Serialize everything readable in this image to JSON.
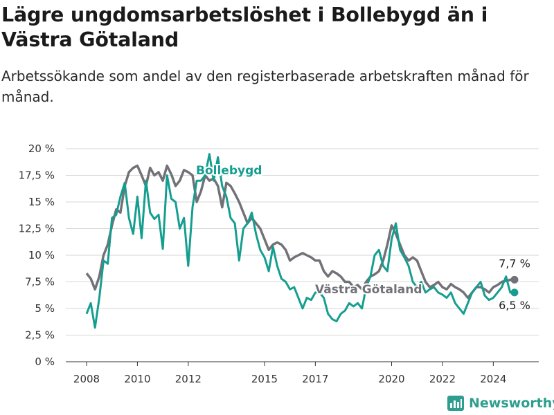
{
  "title": "Lägre ungdomsarbetslöshet i Bollebygd än i Västra Götaland",
  "subtitle": "Arbetssökande som andel av den registerbaserade arbetskraften månad för månad.",
  "brand": "Newsworthy",
  "colors": {
    "bollebygd": "#159e90",
    "vastra_gotaland": "#717178",
    "grid": "#d6d6d6",
    "brand": "#2e9e8f"
  },
  "chart_data": {
    "type": "line",
    "x_ticks": [
      "2008",
      "2010",
      "2012",
      "2015",
      "2017",
      "2020",
      "2022",
      "2024"
    ],
    "y_ticks": [
      "0 %",
      "2,5 %",
      "5 %",
      "7,5 %",
      "10 %",
      "12,5 %",
      "15 %",
      "17,5 %",
      "20 %"
    ],
    "ylim": [
      0,
      20
    ],
    "xlim": [
      "2008-01",
      "2024-12"
    ],
    "grid": "horizontal",
    "series": [
      {
        "name": "Bollebygd",
        "end_label": "6,5 %",
        "x": [
          "2008-01",
          "2008-03",
          "2008-05",
          "2008-07",
          "2008-09",
          "2008-11",
          "2009-01",
          "2009-03",
          "2009-05",
          "2009-07",
          "2009-09",
          "2009-11",
          "2010-01",
          "2010-03",
          "2010-05",
          "2010-07",
          "2010-09",
          "2010-11",
          "2011-01",
          "2011-03",
          "2011-05",
          "2011-07",
          "2011-09",
          "2011-11",
          "2012-01",
          "2012-03",
          "2012-05",
          "2012-07",
          "2012-09",
          "2012-11",
          "2013-01",
          "2013-03",
          "2013-05",
          "2013-07",
          "2013-09",
          "2013-11",
          "2014-01",
          "2014-03",
          "2014-05",
          "2014-07",
          "2014-09",
          "2014-11",
          "2015-01",
          "2015-03",
          "2015-05",
          "2015-07",
          "2015-09",
          "2015-11",
          "2016-01",
          "2016-03",
          "2016-05",
          "2016-07",
          "2016-09",
          "2016-11",
          "2017-01",
          "2017-03",
          "2017-05",
          "2017-07",
          "2017-09",
          "2017-11",
          "2018-01",
          "2018-03",
          "2018-05",
          "2018-07",
          "2018-09",
          "2018-11",
          "2019-01",
          "2019-03",
          "2019-05",
          "2019-07",
          "2019-09",
          "2019-11",
          "2020-01",
          "2020-03",
          "2020-05",
          "2020-07",
          "2020-09",
          "2020-11",
          "2021-01",
          "2021-03",
          "2021-05",
          "2021-07",
          "2021-09",
          "2021-11",
          "2022-01",
          "2022-03",
          "2022-05",
          "2022-07",
          "2022-09",
          "2022-11",
          "2023-01",
          "2023-03",
          "2023-05",
          "2023-07",
          "2023-09",
          "2023-11",
          "2024-01",
          "2024-03",
          "2024-05",
          "2024-07",
          "2024-09",
          "2024-11"
        ],
        "values": [
          4.5,
          5.5,
          3.2,
          6.0,
          9.5,
          9.2,
          13.5,
          13.8,
          15.5,
          16.8,
          13.5,
          12.0,
          15.5,
          11.6,
          17.0,
          14.0,
          13.4,
          13.8,
          10.6,
          17.5,
          15.3,
          15.0,
          12.5,
          13.5,
          9.0,
          14.5,
          17.0,
          17.0,
          17.5,
          19.5,
          17.0,
          19.2,
          16.5,
          15.5,
          13.5,
          13.0,
          9.5,
          12.5,
          13.0,
          14.0,
          12.0,
          10.5,
          9.8,
          8.5,
          10.8,
          9.0,
          7.8,
          7.5,
          6.8,
          7.0,
          6.0,
          5.0,
          6.0,
          5.8,
          6.5,
          6.5,
          6.0,
          4.5,
          4.0,
          3.8,
          4.5,
          4.8,
          5.5,
          5.2,
          5.5,
          5.0,
          7.0,
          8.0,
          10.0,
          10.5,
          9.0,
          8.5,
          11.5,
          13.0,
          10.5,
          9.8,
          9.0,
          7.5,
          7.0,
          7.5,
          6.5,
          6.8,
          7.0,
          6.5,
          6.3,
          6.0,
          6.5,
          5.5,
          5.0,
          4.5,
          5.5,
          6.5,
          7.0,
          7.5,
          6.2,
          5.8,
          6.0,
          6.5,
          7.0,
          8.0,
          6.5,
          6.5
        ]
      },
      {
        "name": "Västra Götaland",
        "end_label": "7,7 %",
        "x": [
          "2008-01",
          "2008-03",
          "2008-05",
          "2008-07",
          "2008-09",
          "2008-11",
          "2009-01",
          "2009-03",
          "2009-05",
          "2009-07",
          "2009-09",
          "2009-11",
          "2010-01",
          "2010-03",
          "2010-05",
          "2010-07",
          "2010-09",
          "2010-11",
          "2011-01",
          "2011-03",
          "2011-05",
          "2011-07",
          "2011-09",
          "2011-11",
          "2012-01",
          "2012-03",
          "2012-05",
          "2012-07",
          "2012-09",
          "2012-11",
          "2013-01",
          "2013-03",
          "2013-05",
          "2013-07",
          "2013-09",
          "2013-11",
          "2014-01",
          "2014-03",
          "2014-05",
          "2014-07",
          "2014-09",
          "2014-11",
          "2015-01",
          "2015-03",
          "2015-05",
          "2015-07",
          "2015-09",
          "2015-11",
          "2016-01",
          "2016-03",
          "2016-05",
          "2016-07",
          "2016-09",
          "2016-11",
          "2017-01",
          "2017-03",
          "2017-05",
          "2017-07",
          "2017-09",
          "2017-11",
          "2018-01",
          "2018-03",
          "2018-05",
          "2018-07",
          "2018-09",
          "2018-11",
          "2019-01",
          "2019-03",
          "2019-05",
          "2019-07",
          "2019-09",
          "2019-11",
          "2020-01",
          "2020-03",
          "2020-05",
          "2020-07",
          "2020-09",
          "2020-11",
          "2021-01",
          "2021-03",
          "2021-05",
          "2021-07",
          "2021-09",
          "2021-11",
          "2022-01",
          "2022-03",
          "2022-05",
          "2022-07",
          "2022-09",
          "2022-11",
          "2023-01",
          "2023-03",
          "2023-05",
          "2023-07",
          "2023-09",
          "2023-11",
          "2024-01",
          "2024-03",
          "2024-05",
          "2024-07",
          "2024-09",
          "2024-11"
        ],
        "values": [
          8.3,
          7.8,
          6.8,
          8.0,
          10.0,
          11.0,
          12.8,
          14.3,
          14.0,
          16.5,
          17.8,
          18.2,
          18.4,
          17.5,
          16.5,
          18.2,
          17.5,
          17.8,
          17.0,
          18.4,
          17.6,
          16.5,
          17.0,
          18.0,
          17.8,
          17.5,
          15.0,
          16.0,
          17.5,
          17.0,
          17.2,
          16.5,
          14.5,
          16.8,
          16.5,
          15.8,
          15.0,
          14.0,
          13.0,
          13.5,
          13.0,
          12.5,
          11.5,
          10.5,
          11.0,
          11.2,
          11.0,
          10.5,
          9.5,
          9.8,
          10.0,
          10.2,
          10.0,
          9.8,
          9.5,
          9.5,
          8.5,
          8.0,
          8.5,
          8.3,
          8.0,
          7.5,
          7.5,
          7.0,
          7.2,
          6.8,
          7.5,
          8.0,
          8.2,
          8.5,
          9.5,
          11.0,
          12.8,
          12.0,
          11.0,
          10.0,
          9.5,
          9.8,
          9.5,
          8.5,
          7.5,
          7.0,
          7.2,
          7.5,
          7.0,
          6.8,
          7.3,
          7.0,
          6.8,
          6.5,
          6.0,
          6.5,
          7.0,
          7.0,
          6.8,
          6.5,
          7.0,
          7.2,
          7.5,
          7.6,
          7.7,
          7.7
        ]
      }
    ]
  }
}
